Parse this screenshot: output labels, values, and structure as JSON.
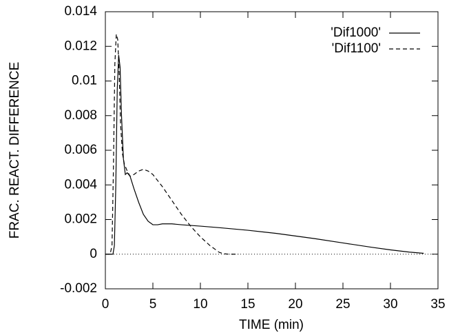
{
  "chart_data": {
    "type": "line",
    "x_label": "TIME (min)",
    "y_label": "FRAC. REACT. DIFFERENCE",
    "xlim": [
      0,
      35
    ],
    "xticks": [
      0,
      5,
      10,
      15,
      20,
      25,
      30,
      35
    ],
    "ylim": [
      -0.002,
      0.014
    ],
    "yticks": [
      -0.002,
      0,
      0.002,
      0.004,
      0.006,
      0.008,
      0.01,
      0.012,
      0.014
    ],
    "zero_axis": true,
    "legend": "top-right",
    "series": [
      {
        "name": "'Dif1000'",
        "color": "#000000",
        "style": "solid",
        "x": [
          0,
          0.8,
          0.95,
          1.1,
          1.25,
          1.4,
          1.55,
          1.7,
          1.9,
          2.1,
          2.3,
          2.6,
          3.0,
          3.5,
          4.0,
          4.5,
          5.0,
          5.5,
          6,
          7,
          8,
          10,
          12,
          15,
          18,
          20,
          22,
          25,
          28,
          30,
          32,
          33.5
        ],
        "values": [
          0,
          0,
          0.0005,
          0.004,
          0.0095,
          0.0115,
          0.0108,
          0.008,
          0.0055,
          0.0046,
          0.0047,
          0.0045,
          0.0038,
          0.003,
          0.0023,
          0.0019,
          0.0017,
          0.0017,
          0.00175,
          0.00175,
          0.0017,
          0.00162,
          0.00153,
          0.00138,
          0.0012,
          0.00105,
          0.0009,
          0.00065,
          0.0004,
          0.00025,
          0.00012,
          5e-05
        ]
      },
      {
        "name": "'Dif1100'",
        "color": "#000000",
        "style": "dashed",
        "x": [
          0,
          0.5,
          0.7,
          0.85,
          1.0,
          1.15,
          1.3,
          1.45,
          1.6,
          1.8,
          2.0,
          2.3,
          2.6,
          3.0,
          3.5,
          4.0,
          4.5,
          5,
          6,
          7,
          8,
          9,
          10,
          11,
          12,
          12.5,
          13,
          14
        ],
        "values": [
          0,
          0,
          0.0005,
          0.005,
          0.011,
          0.0127,
          0.0124,
          0.0105,
          0.0075,
          0.0058,
          0.0052,
          0.0048,
          0.0045,
          0.0046,
          0.0048,
          0.0049,
          0.0048,
          0.0046,
          0.0039,
          0.0031,
          0.0023,
          0.0016,
          0.001,
          0.0005,
          0.0001,
          2e-05,
          0,
          0
        ]
      }
    ]
  }
}
